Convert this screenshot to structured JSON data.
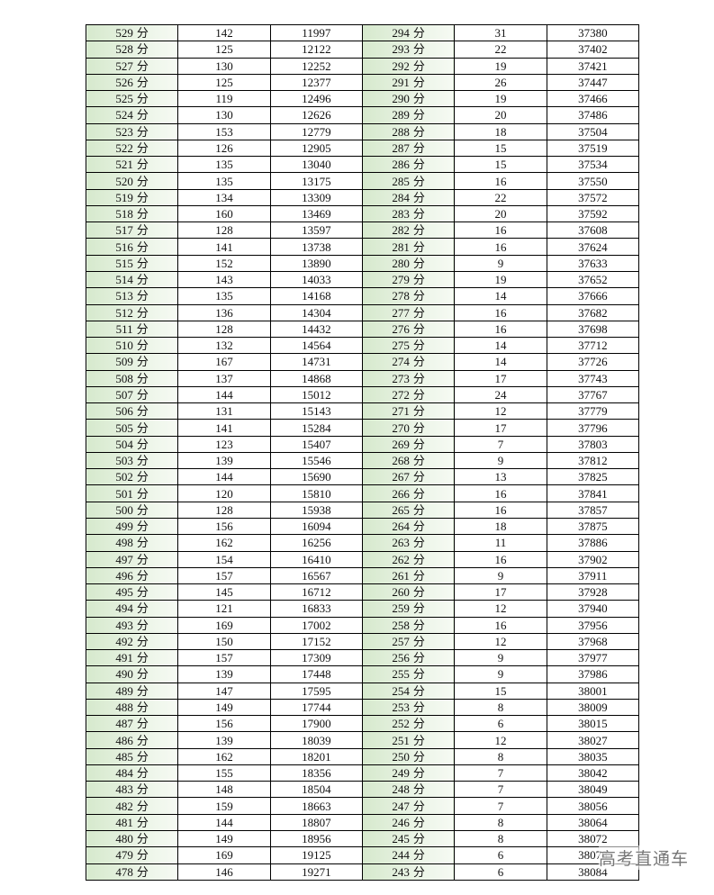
{
  "unit": "分",
  "rows": [
    [
      "529",
      "142",
      "11997",
      "294",
      "31",
      "37380"
    ],
    [
      "528",
      "125",
      "12122",
      "293",
      "22",
      "37402"
    ],
    [
      "527",
      "130",
      "12252",
      "292",
      "19",
      "37421"
    ],
    [
      "526",
      "125",
      "12377",
      "291",
      "26",
      "37447"
    ],
    [
      "525",
      "119",
      "12496",
      "290",
      "19",
      "37466"
    ],
    [
      "524",
      "130",
      "12626",
      "289",
      "20",
      "37486"
    ],
    [
      "523",
      "153",
      "12779",
      "288",
      "18",
      "37504"
    ],
    [
      "522",
      "126",
      "12905",
      "287",
      "15",
      "37519"
    ],
    [
      "521",
      "135",
      "13040",
      "286",
      "15",
      "37534"
    ],
    [
      "520",
      "135",
      "13175",
      "285",
      "16",
      "37550"
    ],
    [
      "519",
      "134",
      "13309",
      "284",
      "22",
      "37572"
    ],
    [
      "518",
      "160",
      "13469",
      "283",
      "20",
      "37592"
    ],
    [
      "517",
      "128",
      "13597",
      "282",
      "16",
      "37608"
    ],
    [
      "516",
      "141",
      "13738",
      "281",
      "16",
      "37624"
    ],
    [
      "515",
      "152",
      "13890",
      "280",
      "9",
      "37633"
    ],
    [
      "514",
      "143",
      "14033",
      "279",
      "19",
      "37652"
    ],
    [
      "513",
      "135",
      "14168",
      "278",
      "14",
      "37666"
    ],
    [
      "512",
      "136",
      "14304",
      "277",
      "16",
      "37682"
    ],
    [
      "511",
      "128",
      "14432",
      "276",
      "16",
      "37698"
    ],
    [
      "510",
      "132",
      "14564",
      "275",
      "14",
      "37712"
    ],
    [
      "509",
      "167",
      "14731",
      "274",
      "14",
      "37726"
    ],
    [
      "508",
      "137",
      "14868",
      "273",
      "17",
      "37743"
    ],
    [
      "507",
      "144",
      "15012",
      "272",
      "24",
      "37767"
    ],
    [
      "506",
      "131",
      "15143",
      "271",
      "12",
      "37779"
    ],
    [
      "505",
      "141",
      "15284",
      "270",
      "17",
      "37796"
    ],
    [
      "504",
      "123",
      "15407",
      "269",
      "7",
      "37803"
    ],
    [
      "503",
      "139",
      "15546",
      "268",
      "9",
      "37812"
    ],
    [
      "502",
      "144",
      "15690",
      "267",
      "13",
      "37825"
    ],
    [
      "501",
      "120",
      "15810",
      "266",
      "16",
      "37841"
    ],
    [
      "500",
      "128",
      "15938",
      "265",
      "16",
      "37857"
    ],
    [
      "499",
      "156",
      "16094",
      "264",
      "18",
      "37875"
    ],
    [
      "498",
      "162",
      "16256",
      "263",
      "11",
      "37886"
    ],
    [
      "497",
      "154",
      "16410",
      "262",
      "16",
      "37902"
    ],
    [
      "496",
      "157",
      "16567",
      "261",
      "9",
      "37911"
    ],
    [
      "495",
      "145",
      "16712",
      "260",
      "17",
      "37928"
    ],
    [
      "494",
      "121",
      "16833",
      "259",
      "12",
      "37940"
    ],
    [
      "493",
      "169",
      "17002",
      "258",
      "16",
      "37956"
    ],
    [
      "492",
      "150",
      "17152",
      "257",
      "12",
      "37968"
    ],
    [
      "491",
      "157",
      "17309",
      "256",
      "9",
      "37977"
    ],
    [
      "490",
      "139",
      "17448",
      "255",
      "9",
      "37986"
    ],
    [
      "489",
      "147",
      "17595",
      "254",
      "15",
      "38001"
    ],
    [
      "488",
      "149",
      "17744",
      "253",
      "8",
      "38009"
    ],
    [
      "487",
      "156",
      "17900",
      "252",
      "6",
      "38015"
    ],
    [
      "486",
      "139",
      "18039",
      "251",
      "12",
      "38027"
    ],
    [
      "485",
      "162",
      "18201",
      "250",
      "8",
      "38035"
    ],
    [
      "484",
      "155",
      "18356",
      "249",
      "7",
      "38042"
    ],
    [
      "483",
      "148",
      "18504",
      "248",
      "7",
      "38049"
    ],
    [
      "482",
      "159",
      "18663",
      "247",
      "7",
      "38056"
    ],
    [
      "481",
      "144",
      "18807",
      "246",
      "8",
      "38064"
    ],
    [
      "480",
      "149",
      "18956",
      "245",
      "8",
      "38072"
    ],
    [
      "479",
      "169",
      "19125",
      "244",
      "6",
      "38078"
    ],
    [
      "478",
      "146",
      "19271",
      "243",
      "6",
      "38084"
    ]
  ],
  "watermark_logo": "高考直通车",
  "colors": {
    "score_bg": "#d6e9cd",
    "border": "#000000"
  }
}
